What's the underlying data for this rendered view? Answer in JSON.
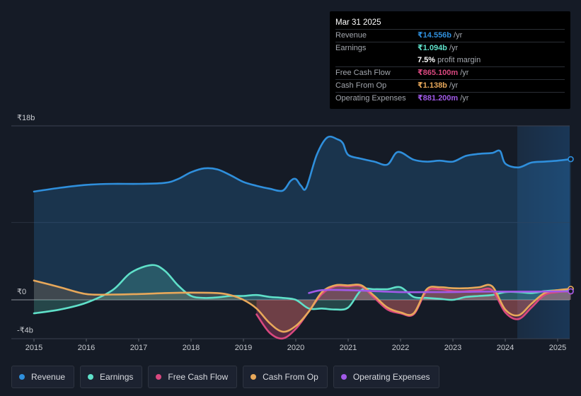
{
  "tooltip": {
    "date": "Mar 31 2025",
    "rows": [
      {
        "label": "Revenue",
        "value": "₹14.556b",
        "unit": "/yr",
        "color": "#2f8fdc"
      },
      {
        "label": "Earnings",
        "value": "₹1.094b",
        "unit": "/yr",
        "color": "#5fe0c9"
      },
      {
        "label": "",
        "value": "7.5%",
        "unit": "profit margin",
        "color": "#ffffff"
      },
      {
        "label": "Free Cash Flow",
        "value": "₹865.100m",
        "unit": "/yr",
        "color": "#d9487f"
      },
      {
        "label": "Cash From Op",
        "value": "₹1.138b",
        "unit": "/yr",
        "color": "#e8a85a"
      },
      {
        "label": "Operating Expenses",
        "value": "₹881.200m",
        "unit": "/yr",
        "color": "#a15ae8"
      }
    ]
  },
  "legend": [
    {
      "label": "Revenue",
      "color": "#2f8fdc"
    },
    {
      "label": "Earnings",
      "color": "#5fe0c9"
    },
    {
      "label": "Free Cash Flow",
      "color": "#d9487f"
    },
    {
      "label": "Cash From Op",
      "color": "#e8a85a"
    },
    {
      "label": "Operating Expenses",
      "color": "#a15ae8"
    }
  ],
  "chart_data": {
    "type": "line",
    "unit": "₹b",
    "ylim": [
      -4,
      18
    ],
    "y_tick_labels": [
      "₹18b",
      "₹0",
      "-₹4b"
    ],
    "y_tick_values": [
      18,
      0,
      -4
    ],
    "x_tick_labels": [
      "2015",
      "2016",
      "2017",
      "2018",
      "2019",
      "2020",
      "2021",
      "2022",
      "2023",
      "2024",
      "2025"
    ],
    "x_tick_values": [
      2015,
      2016,
      2017,
      2018,
      2019,
      2020,
      2021,
      2022,
      2023,
      2024,
      2025
    ],
    "xlim": [
      2014.53,
      2025.25
    ],
    "highlight_start": 2024.25,
    "series": [
      {
        "name": "Revenue",
        "color": "#2f8fdc",
        "fill": true,
        "points": [
          [
            2015.0,
            11.2
          ],
          [
            2015.5,
            11.6
          ],
          [
            2016.0,
            11.9
          ],
          [
            2016.5,
            12.0
          ],
          [
            2017.0,
            12.0
          ],
          [
            2017.5,
            12.1
          ],
          [
            2017.75,
            12.5
          ],
          [
            2018.0,
            13.2
          ],
          [
            2018.25,
            13.6
          ],
          [
            2018.5,
            13.5
          ],
          [
            2018.75,
            12.9
          ],
          [
            2019.0,
            12.2
          ],
          [
            2019.25,
            11.8
          ],
          [
            2019.5,
            11.5
          ],
          [
            2019.75,
            11.3
          ],
          [
            2019.9,
            12.3
          ],
          [
            2020.0,
            12.5
          ],
          [
            2020.1,
            11.8
          ],
          [
            2020.2,
            11.6
          ],
          [
            2020.4,
            15.0
          ],
          [
            2020.6,
            16.8
          ],
          [
            2020.8,
            16.6
          ],
          [
            2020.9,
            16.2
          ],
          [
            2021.0,
            15.0
          ],
          [
            2021.25,
            14.6
          ],
          [
            2021.5,
            14.3
          ],
          [
            2021.75,
            14.0
          ],
          [
            2021.95,
            15.3
          ],
          [
            2022.25,
            14.5
          ],
          [
            2022.5,
            14.3
          ],
          [
            2022.75,
            14.4
          ],
          [
            2023.0,
            14.3
          ],
          [
            2023.25,
            14.9
          ],
          [
            2023.5,
            15.1
          ],
          [
            2023.75,
            15.2
          ],
          [
            2023.9,
            15.4
          ],
          [
            2024.0,
            14.1
          ],
          [
            2024.25,
            13.7
          ],
          [
            2024.5,
            14.2
          ],
          [
            2024.75,
            14.3
          ],
          [
            2025.0,
            14.4
          ],
          [
            2025.25,
            14.556
          ]
        ]
      },
      {
        "name": "Earnings",
        "color": "#5fe0c9",
        "fill": true,
        "points": [
          [
            2015.0,
            -1.4
          ],
          [
            2015.5,
            -1.0
          ],
          [
            2016.0,
            -0.3
          ],
          [
            2016.5,
            1.0
          ],
          [
            2016.85,
            2.8
          ],
          [
            2017.25,
            3.6
          ],
          [
            2017.5,
            3.0
          ],
          [
            2017.75,
            1.5
          ],
          [
            2018.0,
            0.4
          ],
          [
            2018.25,
            0.2
          ],
          [
            2018.5,
            0.25
          ],
          [
            2018.75,
            0.4
          ],
          [
            2019.0,
            0.4
          ],
          [
            2019.25,
            0.5
          ],
          [
            2019.5,
            0.3
          ],
          [
            2019.75,
            0.2
          ],
          [
            2020.0,
            0.0
          ],
          [
            2020.25,
            -0.9
          ],
          [
            2020.5,
            -0.9
          ],
          [
            2020.75,
            -1.0
          ],
          [
            2021.0,
            -0.8
          ],
          [
            2021.25,
            1.0
          ],
          [
            2021.5,
            1.1
          ],
          [
            2021.75,
            1.1
          ],
          [
            2022.0,
            1.3
          ],
          [
            2022.25,
            0.3
          ],
          [
            2022.5,
            0.2
          ],
          [
            2022.75,
            0.1
          ],
          [
            2023.0,
            0.0
          ],
          [
            2023.25,
            0.3
          ],
          [
            2023.5,
            0.4
          ],
          [
            2023.75,
            0.5
          ],
          [
            2024.0,
            0.8
          ],
          [
            2024.25,
            0.8
          ],
          [
            2024.5,
            0.7
          ],
          [
            2024.75,
            0.9
          ],
          [
            2025.0,
            1.0
          ],
          [
            2025.25,
            1.094
          ]
        ]
      },
      {
        "name": "Free Cash Flow",
        "color": "#d9487f",
        "fill": true,
        "points": [
          [
            2019.25,
            -1.5
          ],
          [
            2019.5,
            -3.4
          ],
          [
            2019.75,
            -4.0
          ],
          [
            2020.0,
            -3.0
          ],
          [
            2020.25,
            -1.2
          ],
          [
            2020.5,
            0.6
          ],
          [
            2020.75,
            1.4
          ],
          [
            2021.0,
            1.4
          ],
          [
            2021.25,
            1.4
          ],
          [
            2021.5,
            0.2
          ],
          [
            2021.75,
            -1.0
          ],
          [
            2022.0,
            -1.4
          ],
          [
            2022.25,
            -1.5
          ],
          [
            2022.5,
            0.9
          ],
          [
            2022.75,
            1.1
          ],
          [
            2023.0,
            0.9
          ],
          [
            2023.25,
            0.9
          ],
          [
            2023.5,
            1.0
          ],
          [
            2023.75,
            1.0
          ],
          [
            2024.0,
            -1.3
          ],
          [
            2024.25,
            -2.0
          ],
          [
            2024.5,
            -0.8
          ],
          [
            2024.75,
            0.5
          ],
          [
            2025.0,
            0.8
          ],
          [
            2025.25,
            0.865
          ]
        ]
      },
      {
        "name": "Cash From Op",
        "color": "#e8a85a",
        "fill": true,
        "points": [
          [
            2015.0,
            2.0
          ],
          [
            2015.5,
            1.3
          ],
          [
            2016.0,
            0.6
          ],
          [
            2016.5,
            0.55
          ],
          [
            2017.0,
            0.6
          ],
          [
            2017.5,
            0.7
          ],
          [
            2018.0,
            0.75
          ],
          [
            2018.5,
            0.7
          ],
          [
            2018.75,
            0.5
          ],
          [
            2019.0,
            0.0
          ],
          [
            2019.25,
            -0.9
          ],
          [
            2019.5,
            -2.4
          ],
          [
            2019.75,
            -3.3
          ],
          [
            2020.0,
            -2.7
          ],
          [
            2020.25,
            -1.2
          ],
          [
            2020.5,
            0.8
          ],
          [
            2020.75,
            1.5
          ],
          [
            2021.0,
            1.5
          ],
          [
            2021.25,
            1.5
          ],
          [
            2021.5,
            0.4
          ],
          [
            2021.75,
            -0.8
          ],
          [
            2022.0,
            -1.3
          ],
          [
            2022.25,
            -1.4
          ],
          [
            2022.5,
            1.1
          ],
          [
            2022.75,
            1.3
          ],
          [
            2023.0,
            1.2
          ],
          [
            2023.25,
            1.2
          ],
          [
            2023.5,
            1.3
          ],
          [
            2023.75,
            1.4
          ],
          [
            2024.0,
            -1.0
          ],
          [
            2024.25,
            -1.6
          ],
          [
            2024.5,
            -0.4
          ],
          [
            2024.75,
            0.7
          ],
          [
            2025.0,
            1.0
          ],
          [
            2025.25,
            1.138
          ]
        ]
      },
      {
        "name": "Operating Expenses",
        "color": "#a15ae8",
        "fill": false,
        "points": [
          [
            2020.25,
            0.7
          ],
          [
            2020.5,
            1.0
          ],
          [
            2021.0,
            1.0
          ],
          [
            2021.5,
            0.9
          ],
          [
            2022.0,
            0.8
          ],
          [
            2022.5,
            0.8
          ],
          [
            2023.0,
            0.8
          ],
          [
            2023.5,
            0.85
          ],
          [
            2024.0,
            0.85
          ],
          [
            2024.5,
            0.85
          ],
          [
            2025.0,
            0.87
          ],
          [
            2025.25,
            0.881
          ]
        ]
      }
    ]
  }
}
